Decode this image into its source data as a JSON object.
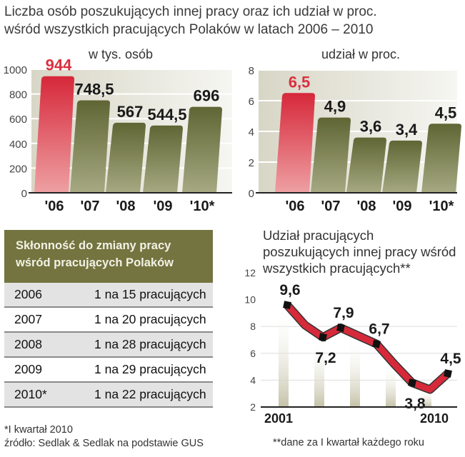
{
  "title": [
    "Liczba osób poszukujących innej pracy oraz ich udział w proc.",
    "wśród wszystkich pracujących Polaków w latach 2006 – 2010"
  ],
  "colors": {
    "highlight": "#d9303f",
    "olive": "#6f7440",
    "table_header": "#73743f",
    "line": "#d62a3a"
  },
  "chart_data": [
    {
      "type": "bar",
      "title": "w tys. osób",
      "categories": [
        "'06",
        "'07",
        "'08",
        "'09",
        "'10*"
      ],
      "values": [
        944,
        748.5,
        567,
        544.5,
        696
      ],
      "labels": [
        "944",
        "748,5",
        "567",
        "544,5",
        "696"
      ],
      "highlight_index": 0,
      "yticks": [
        0,
        200,
        400,
        600,
        800,
        1000
      ],
      "ylim": [
        0,
        1000
      ]
    },
    {
      "type": "bar",
      "title": "udział w proc.",
      "categories": [
        "'06",
        "'07",
        "'08",
        "'09",
        "'10*"
      ],
      "values": [
        6.5,
        4.9,
        3.6,
        3.4,
        4.5
      ],
      "labels": [
        "6,5",
        "4,9",
        "3,6",
        "3,4",
        "4,5"
      ],
      "highlight_index": 0,
      "yticks": [
        0,
        2,
        4,
        6,
        8
      ],
      "ylim": [
        0,
        8
      ]
    },
    {
      "type": "line",
      "title": "Udział pracujących poszukujących innej pracy wśród wszystkich pracujących**",
      "x": [
        2001,
        2002,
        2003,
        2004,
        2005,
        2006,
        2007,
        2008,
        2009,
        2010
      ],
      "values": [
        9.6,
        8.1,
        7.2,
        7.9,
        7.3,
        6.7,
        5.2,
        3.8,
        3.3,
        4.5
      ],
      "point_labels": [
        {
          "x": 2001,
          "label": "9,6"
        },
        {
          "x": 2003,
          "label": "7,2"
        },
        {
          "x": 2004,
          "label": "7,9"
        },
        {
          "x": 2006,
          "label": "6,7"
        },
        {
          "x": 2008,
          "label": "3,8"
        },
        {
          "x": 2010,
          "label": "4,5"
        }
      ],
      "xtick_labels": [
        "2001",
        "2010"
      ],
      "yticks": [
        2,
        4,
        6,
        8,
        10,
        12
      ],
      "ylim": [
        2,
        12
      ],
      "footnote": "**dane za I kwartał każdego roku"
    }
  ],
  "table": {
    "header": [
      "Skłonność do zmiany pracy",
      "wśród pracujących Polaków"
    ],
    "rows": [
      {
        "year": "2006",
        "value": "1 na 15 pracujących"
      },
      {
        "year": "2007",
        "value": "1 na 20 pracujących"
      },
      {
        "year": "2008",
        "value": "1 na 28 pracujących"
      },
      {
        "year": "2009",
        "value": "1 na 29 pracujących"
      },
      {
        "year": "2010*",
        "value": "1 na 22 pracujących"
      }
    ]
  },
  "footnotes": [
    "*I kwartał 2010",
    "źródło: Sedlak & Sedlak na podstawie GUS"
  ]
}
